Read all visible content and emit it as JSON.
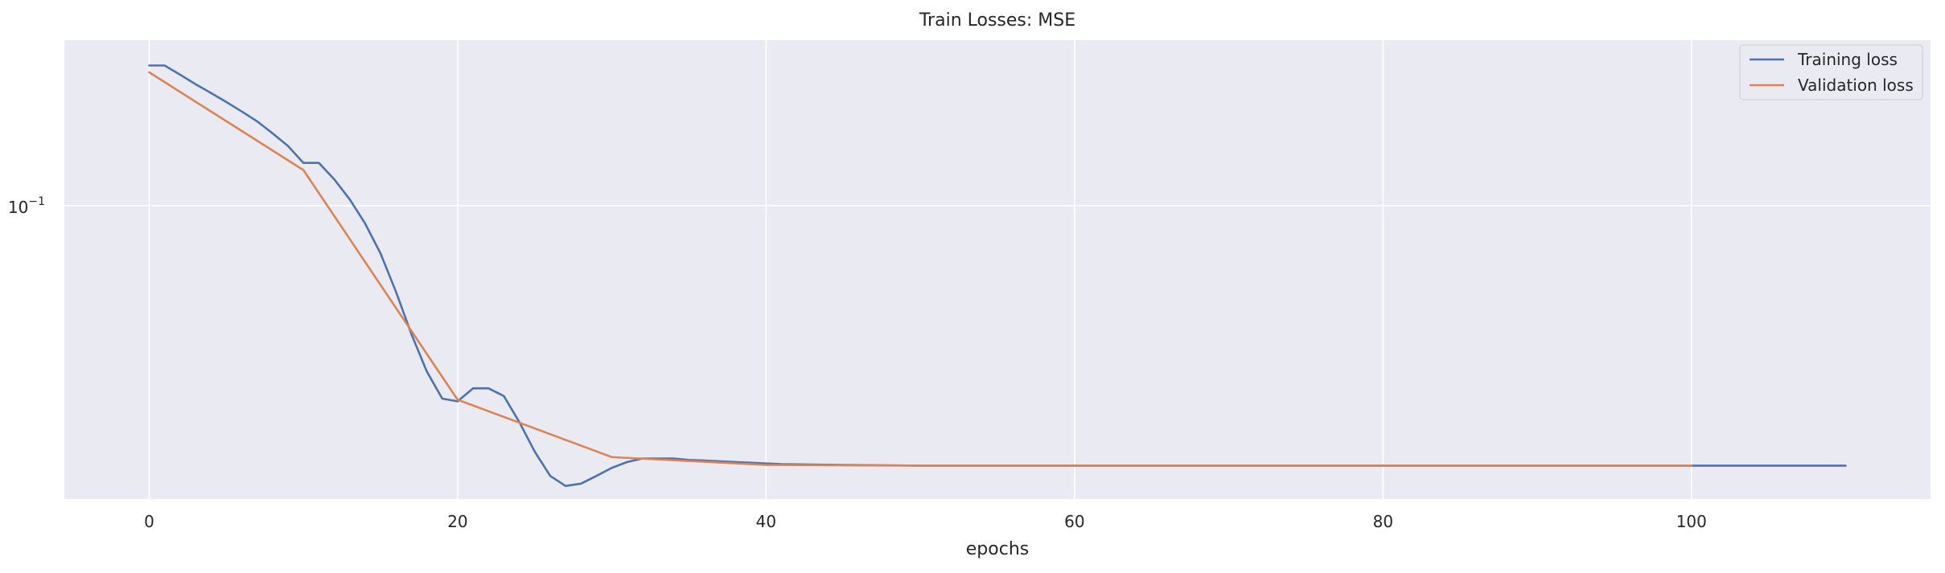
{
  "chart_data": {
    "type": "line",
    "title": "Train Losses:  MSE",
    "xlabel": "epochs",
    "ylabel": "",
    "xlim": [
      -5.5,
      115.5
    ],
    "ylim": [
      0.0255,
      0.216
    ],
    "yscale": "log",
    "grid": true,
    "legend_position": "top-right",
    "x_ticks": [
      0,
      20,
      40,
      60,
      80,
      100
    ],
    "y_ticks": [
      {
        "value": 0.1,
        "base": "10",
        "exponent": "−1"
      }
    ],
    "series": [
      {
        "name": "Training loss",
        "color": "#4c72b0",
        "x": [
          0,
          1,
          2,
          3,
          4,
          5,
          6,
          7,
          8,
          9,
          10,
          11,
          12,
          13,
          14,
          15,
          16,
          17,
          18,
          19,
          20,
          21,
          22,
          23,
          24,
          25,
          26,
          27,
          28,
          29,
          30,
          31,
          32,
          33,
          34,
          35,
          36,
          37,
          38,
          39,
          40,
          41,
          45,
          50,
          60,
          70,
          80,
          90,
          100,
          105,
          110
        ],
        "y": [
          0.192,
          0.192,
          0.184,
          0.176,
          0.169,
          0.162,
          0.155,
          0.148,
          0.14,
          0.132,
          0.122,
          0.122,
          0.113,
          0.103,
          0.092,
          0.08,
          0.067,
          0.055,
          0.0462,
          0.0407,
          0.0402,
          0.0427,
          0.0427,
          0.0412,
          0.0365,
          0.0318,
          0.0284,
          0.0271,
          0.0274,
          0.0284,
          0.0295,
          0.0303,
          0.0308,
          0.0308,
          0.0308,
          0.0306,
          0.0305,
          0.0304,
          0.0303,
          0.0302,
          0.0301,
          0.03,
          0.0299,
          0.0298,
          0.0298,
          0.0298,
          0.0298,
          0.0298,
          0.0298,
          0.0298,
          0.0298
        ]
      },
      {
        "name": "Validation loss",
        "color": "#dd8452",
        "x": [
          0,
          10,
          20,
          30,
          40,
          50,
          60,
          70,
          80,
          90,
          100
        ],
        "y": [
          0.186,
          0.118,
          0.0405,
          0.031,
          0.0299,
          0.0298,
          0.0298,
          0.0298,
          0.0298,
          0.0298,
          0.0298
        ]
      }
    ]
  }
}
